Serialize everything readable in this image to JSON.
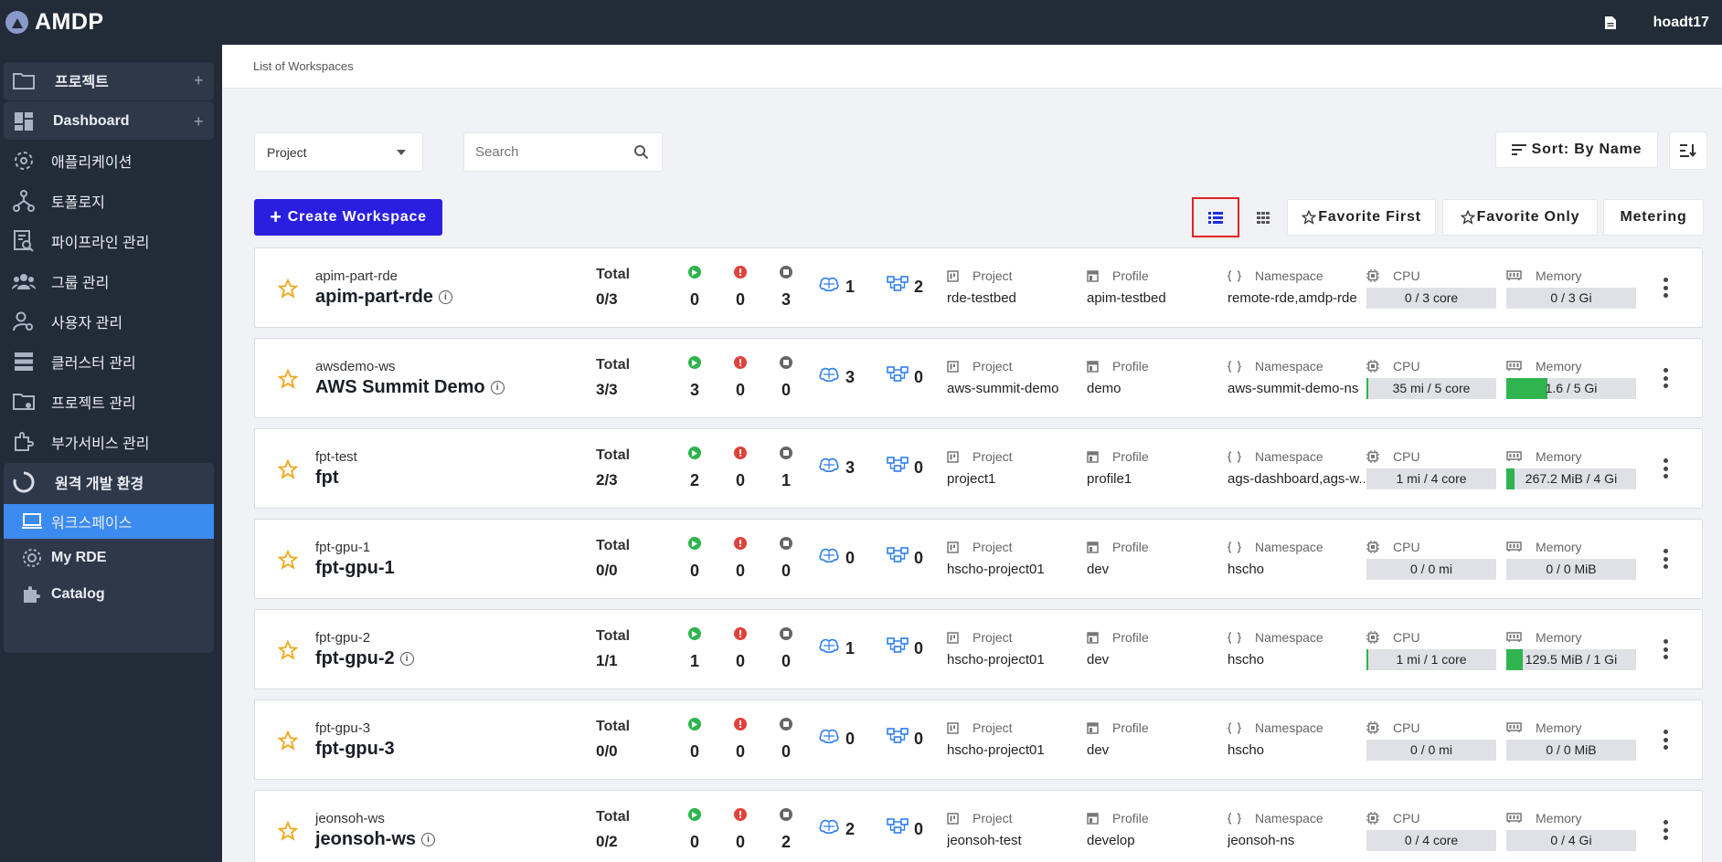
{
  "app": {
    "title": "AMDP",
    "user": "hoadt17"
  },
  "sidebar": {
    "items": [
      {
        "label": "프로젝트",
        "icon": "folder-icon",
        "has_plus": true
      },
      {
        "label": "Dashboard",
        "icon": "dashboard-icon",
        "has_plus": true
      },
      {
        "label": "애플리케이션",
        "icon": "application-icon"
      },
      {
        "label": "토폴로지",
        "icon": "topology-icon"
      },
      {
        "label": "파이프라인 관리",
        "icon": "pipeline-icon"
      },
      {
        "label": "그룹 관리",
        "icon": "group-icon"
      },
      {
        "label": "사용자 관리",
        "icon": "user-admin-icon"
      },
      {
        "label": "클러스터 관리",
        "icon": "cluster-icon"
      },
      {
        "label": "프로젝트 관리",
        "icon": "project-admin-icon"
      },
      {
        "label": "부가서비스 관리",
        "icon": "addon-icon"
      },
      {
        "label": "원격 개발 환경",
        "icon": "remote-dev-icon"
      }
    ],
    "sub_items": [
      {
        "label": "워크스페이스",
        "icon": "laptop-icon",
        "active": true
      },
      {
        "label": "My RDE",
        "icon": "gear-icon"
      },
      {
        "label": "Catalog",
        "icon": "puzzle-icon"
      }
    ]
  },
  "breadcrumb": "List of Workspaces",
  "toolbar": {
    "project_select": "Project",
    "search_placeholder": "Search",
    "sort_label": "Sort: By Name",
    "create_label": "Create Workspace",
    "favorite_first": "Favorite First",
    "favorite_only": "Favorite Only",
    "metering": "Metering"
  },
  "labels": {
    "total": "Total",
    "project": "Project",
    "profile": "Profile",
    "namespace": "Namespace",
    "cpu": "CPU",
    "memory": "Memory",
    "node": "node",
    "fargate": "fargate"
  },
  "colors": {
    "running": "#2fb44e",
    "error": "#e0413a",
    "stopped": "#666666",
    "accent": "#2a1ee0",
    "active_nav": "#3b8af0"
  },
  "workspaces": [
    {
      "id": "apim-part-rde",
      "name": "apim-part-rde",
      "info": true,
      "total": "0/3",
      "running": "0",
      "error": "0",
      "stopped": "3",
      "node": "1",
      "fargate": "2",
      "project": "rde-testbed",
      "profile": "apim-testbed",
      "namespace": "remote-rde,amdp-rde",
      "cpu": "0 / 3 core",
      "cpu_usage": 0,
      "memory": "0 / 3 Gi",
      "memory_usage": 0
    },
    {
      "id": "awsdemo-ws",
      "name": "AWS Summit Demo",
      "info": true,
      "total": "3/3",
      "running": "3",
      "error": "0",
      "stopped": "0",
      "node": "3",
      "fargate": "0",
      "project": "aws-summit-demo",
      "profile": "demo",
      "namespace": "aws-summit-demo-ns",
      "cpu": "35 mi / 5 core",
      "cpu_usage": 0.007,
      "memory": "1.6 / 5 Gi",
      "memory_usage": 0.32
    },
    {
      "id": "fpt-test",
      "name": "fpt",
      "info": false,
      "total": "2/3",
      "running": "2",
      "error": "0",
      "stopped": "1",
      "node": "3",
      "fargate": "0",
      "project": "project1",
      "profile": "profile1",
      "namespace": "ags-dashboard,ags-w...",
      "cpu": "1 mi / 4 core",
      "cpu_usage": 0.0,
      "memory": "267.2 MiB / 4 Gi",
      "memory_usage": 0.065
    },
    {
      "id": "fpt-gpu-1",
      "name": "fpt-gpu-1",
      "info": false,
      "total": "0/0",
      "running": "0",
      "error": "0",
      "stopped": "0",
      "node": "0",
      "fargate": "0",
      "project": "hscho-project01",
      "profile": "dev",
      "namespace": "hscho",
      "cpu": "0 / 0 mi",
      "cpu_usage": 0,
      "memory": "0 / 0 MiB",
      "memory_usage": 0
    },
    {
      "id": "fpt-gpu-2",
      "name": "fpt-gpu-2",
      "info": true,
      "total": "1/1",
      "running": "1",
      "error": "0",
      "stopped": "0",
      "node": "1",
      "fargate": "0",
      "project": "hscho-project01",
      "profile": "dev",
      "namespace": "hscho",
      "cpu": "1 mi / 1 core",
      "cpu_usage": 0.001,
      "memory": "129.5 MiB / 1 Gi",
      "memory_usage": 0.126
    },
    {
      "id": "fpt-gpu-3",
      "name": "fpt-gpu-3",
      "info": false,
      "total": "0/0",
      "running": "0",
      "error": "0",
      "stopped": "0",
      "node": "0",
      "fargate": "0",
      "project": "hscho-project01",
      "profile": "dev",
      "namespace": "hscho",
      "cpu": "0 / 0 mi",
      "cpu_usage": 0,
      "memory": "0 / 0 MiB",
      "memory_usage": 0
    },
    {
      "id": "jeonsoh-ws",
      "name": "jeonsoh-ws",
      "info": true,
      "total": "0/2",
      "running": "0",
      "error": "0",
      "stopped": "2",
      "node": "2",
      "fargate": "0",
      "project": "jeonsoh-test",
      "profile": "develop",
      "namespace": "jeonsoh-ns",
      "cpu": "0 / 4 core",
      "cpu_usage": 0,
      "memory": "0 / 4 Gi",
      "memory_usage": 0
    }
  ]
}
